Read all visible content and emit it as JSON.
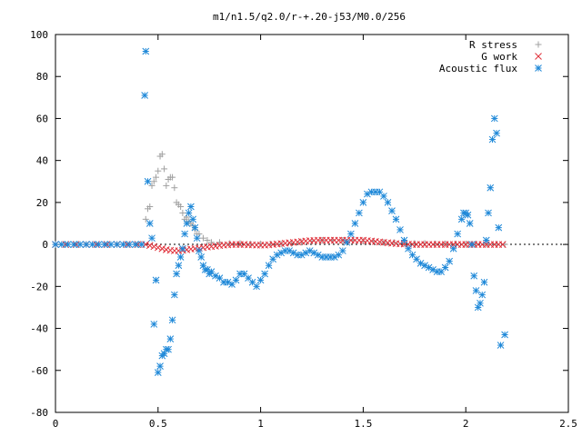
{
  "chart_data": {
    "type": "scatter",
    "title": "m1/n1.5/q2.0/r-+.20-j53/M0.0/256",
    "xlabel": "",
    "ylabel": "",
    "xlim": [
      0,
      2.5
    ],
    "ylim": [
      -80,
      100
    ],
    "x_ticks": [
      {
        "value": 0,
        "label": "0"
      },
      {
        "value": 0.5,
        "label": "0.5"
      },
      {
        "value": 1,
        "label": "1"
      },
      {
        "value": 1.5,
        "label": "1.5"
      },
      {
        "value": 2,
        "label": "2"
      },
      {
        "value": 2.5,
        "label": "2.5"
      }
    ],
    "y_ticks": [
      {
        "value": -80,
        "label": "-80"
      },
      {
        "value": -60,
        "label": "-60"
      },
      {
        "value": -40,
        "label": "-40"
      },
      {
        "value": -20,
        "label": "-20"
      },
      {
        "value": 0,
        "label": "0"
      },
      {
        "value": 20,
        "label": "20"
      },
      {
        "value": 40,
        "label": "40"
      },
      {
        "value": 60,
        "label": "60"
      },
      {
        "value": 80,
        "label": "80"
      },
      {
        "value": 100,
        "label": "100"
      }
    ],
    "grid": false,
    "legend_position": "top-right",
    "series": [
      {
        "name": "R stress",
        "marker": "plus",
        "color": "#a0a0a0",
        "x": [
          0.0,
          0.05,
          0.1,
          0.15,
          0.2,
          0.25,
          0.3,
          0.35,
          0.4,
          0.44,
          0.45,
          0.46,
          0.47,
          0.48,
          0.49,
          0.5,
          0.51,
          0.52,
          0.53,
          0.54,
          0.55,
          0.56,
          0.57,
          0.58,
          0.59,
          0.6,
          0.61,
          0.62,
          0.63,
          0.64,
          0.65,
          0.66,
          0.67,
          0.68,
          0.69,
          0.7,
          0.72,
          0.74,
          0.76,
          0.8,
          0.85,
          0.9,
          0.95,
          1.0,
          1.05,
          1.1,
          1.15,
          1.2,
          1.25,
          1.3,
          1.35,
          1.4,
          1.45,
          1.5,
          1.55,
          1.6,
          1.65,
          1.7,
          1.75,
          1.8,
          1.85,
          1.9,
          1.95,
          2.0,
          2.05,
          2.1,
          2.15,
          2.19
        ],
        "y": [
          0,
          0,
          0,
          0,
          0,
          0,
          0,
          0,
          0,
          12,
          17,
          18,
          28,
          30,
          32,
          35,
          42,
          43,
          36,
          28,
          31,
          32,
          32,
          27,
          20,
          19,
          18,
          15,
          12,
          13,
          11,
          10,
          9,
          7,
          5,
          5,
          3,
          2,
          1,
          1,
          0.5,
          0.5,
          0.3,
          0.3,
          0.2,
          0.2,
          0.5,
          1,
          1.5,
          2,
          2,
          2,
          2,
          1.5,
          1.5,
          1,
          1,
          0.5,
          0.5,
          0.5,
          0.3,
          0.3,
          0.3,
          0.2,
          0.2,
          0.2,
          0.1,
          0
        ]
      },
      {
        "name": "G work",
        "marker": "cross",
        "color": "#e0303a",
        "x": [
          0.0,
          0.05,
          0.1,
          0.15,
          0.2,
          0.25,
          0.3,
          0.35,
          0.4,
          0.44,
          0.46,
          0.48,
          0.5,
          0.52,
          0.54,
          0.56,
          0.58,
          0.6,
          0.62,
          0.64,
          0.66,
          0.68,
          0.7,
          0.72,
          0.74,
          0.76,
          0.78,
          0.8,
          0.82,
          0.84,
          0.86,
          0.88,
          0.9,
          0.92,
          0.94,
          0.96,
          0.98,
          1.0,
          1.02,
          1.04,
          1.06,
          1.08,
          1.1,
          1.12,
          1.14,
          1.16,
          1.18,
          1.2,
          1.22,
          1.24,
          1.26,
          1.28,
          1.3,
          1.32,
          1.34,
          1.36,
          1.38,
          1.4,
          1.42,
          1.44,
          1.46,
          1.48,
          1.5,
          1.52,
          1.54,
          1.56,
          1.58,
          1.6,
          1.62,
          1.64,
          1.66,
          1.68,
          1.7,
          1.72,
          1.74,
          1.76,
          1.78,
          1.8,
          1.82,
          1.84,
          1.86,
          1.88,
          1.9,
          1.92,
          1.94,
          1.96,
          1.98,
          2.0,
          2.02,
          2.04,
          2.06,
          2.08,
          2.1,
          2.12,
          2.14,
          2.16,
          2.18
        ],
        "y": [
          0,
          0,
          0,
          0,
          0,
          0,
          0,
          0,
          0,
          0,
          -0.5,
          -1,
          -1.5,
          -2,
          -2.5,
          -2.8,
          -3,
          -3,
          -2.8,
          -2.5,
          -2.2,
          -2,
          -1.8,
          -1.5,
          -1.2,
          -1,
          -0.8,
          -0.5,
          -0.3,
          -0.2,
          0,
          0,
          0,
          0,
          -0.2,
          -0.2,
          -0.3,
          -0.3,
          -0.3,
          -0.2,
          0,
          0.2,
          0.4,
          0.6,
          0.8,
          1,
          1.2,
          1.4,
          1.6,
          1.8,
          1.9,
          2,
          2,
          2,
          2,
          2,
          2,
          2,
          2,
          2,
          2,
          2,
          2,
          1.8,
          1.6,
          1.4,
          1.2,
          1,
          0.8,
          0.6,
          0.4,
          0.3,
          0.2,
          0.1,
          0,
          0,
          0,
          0,
          0,
          0,
          0,
          0,
          0,
          0,
          0,
          0,
          0,
          0,
          0,
          0,
          0,
          0,
          0,
          0,
          0,
          0,
          0
        ]
      },
      {
        "name": "Acoustic flux",
        "marker": "star",
        "color": "#1e88d8",
        "x": [
          0.0,
          0.03,
          0.06,
          0.09,
          0.12,
          0.15,
          0.18,
          0.21,
          0.24,
          0.27,
          0.3,
          0.33,
          0.36,
          0.39,
          0.42,
          0.435,
          0.44,
          0.45,
          0.46,
          0.47,
          0.48,
          0.49,
          0.5,
          0.51,
          0.52,
          0.53,
          0.54,
          0.55,
          0.56,
          0.57,
          0.58,
          0.59,
          0.6,
          0.61,
          0.62,
          0.63,
          0.64,
          0.65,
          0.66,
          0.67,
          0.68,
          0.69,
          0.7,
          0.71,
          0.72,
          0.73,
          0.74,
          0.75,
          0.76,
          0.78,
          0.8,
          0.82,
          0.84,
          0.86,
          0.88,
          0.9,
          0.92,
          0.94,
          0.96,
          0.98,
          1.0,
          1.02,
          1.04,
          1.06,
          1.08,
          1.1,
          1.12,
          1.14,
          1.16,
          1.18,
          1.2,
          1.22,
          1.24,
          1.26,
          1.28,
          1.3,
          1.32,
          1.34,
          1.36,
          1.38,
          1.4,
          1.42,
          1.44,
          1.46,
          1.48,
          1.5,
          1.52,
          1.54,
          1.56,
          1.58,
          1.6,
          1.62,
          1.64,
          1.66,
          1.68,
          1.7,
          1.72,
          1.74,
          1.76,
          1.78,
          1.8,
          1.82,
          1.84,
          1.86,
          1.88,
          1.9,
          1.92,
          1.94,
          1.96,
          1.98,
          1.99,
          2.0,
          2.01,
          2.02,
          2.03,
          2.04,
          2.05,
          2.06,
          2.07,
          2.08,
          2.09,
          2.1,
          2.11,
          2.12,
          2.13,
          2.14,
          2.15,
          2.16,
          2.17,
          2.19
        ],
        "y": [
          0,
          0,
          0,
          0,
          0,
          0,
          0,
          0,
          0,
          0,
          0,
          0,
          0,
          0,
          0,
          71,
          92,
          30,
          10,
          3,
          -38,
          -17,
          -61,
          -58,
          -53,
          -52,
          -50,
          -50,
          -45,
          -36,
          -24,
          -14,
          -10,
          -6,
          -2,
          5,
          10,
          15,
          18,
          12,
          8,
          3,
          -3,
          -6,
          -10,
          -12,
          -12,
          -14,
          -13,
          -15,
          -16,
          -18,
          -18,
          -19,
          -17,
          -14,
          -14,
          -16,
          -18,
          -20,
          -17,
          -14,
          -10,
          -7,
          -5,
          -4,
          -3,
          -3,
          -4,
          -5,
          -5,
          -4,
          -3,
          -4,
          -5,
          -6,
          -6,
          -6,
          -6,
          -5,
          -3,
          1,
          5,
          10,
          15,
          20,
          24,
          25,
          25,
          25,
          23,
          20,
          16,
          12,
          7,
          2,
          -2,
          -5,
          -7,
          -9,
          -10,
          -11,
          -12,
          -13,
          -13,
          -11,
          -8,
          -2,
          5,
          12,
          15,
          15,
          14,
          10,
          0,
          -15,
          -22,
          -30,
          -28,
          -24,
          -18,
          2,
          15,
          27,
          50,
          60,
          53,
          8,
          -48,
          -43
        ]
      }
    ]
  }
}
